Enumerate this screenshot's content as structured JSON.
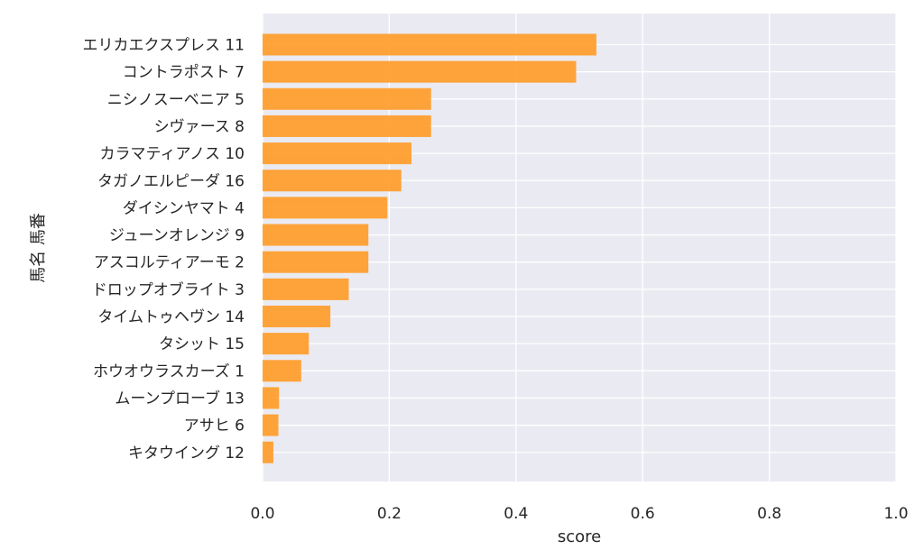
{
  "chart_data": {
    "type": "bar",
    "orientation": "horizontal",
    "xlabel": "score",
    "ylabel": "馬名 馬番",
    "xlim": [
      0.0,
      1.0
    ],
    "xticks": [
      "0.0",
      "0.2",
      "0.4",
      "0.6",
      "0.8",
      "1.0"
    ],
    "xtick_values": [
      0.0,
      0.2,
      0.4,
      0.6,
      0.8,
      1.0
    ],
    "grid": true,
    "bar_color": "#ff9f2e",
    "background_color": "#eaeaf2",
    "categories": [
      "エリカエクスプレス 11",
      "コントラポスト 7",
      "ニシノスーベニア 5",
      "シヴァース 8",
      "カラマティアノス 10",
      "タガノエルピーダ 16",
      "ダイシンヤマト 4",
      "ジューンオレンジ 9",
      "アスコルティアーモ 2",
      "ドロップオブライト 3",
      "タイムトゥヘヴン 14",
      "タシット 15",
      "ホウオウラスカーズ 1",
      "ムーンプローブ 13",
      "アサヒ 6",
      "キタウイング 12"
    ],
    "values": [
      0.527,
      0.495,
      0.266,
      0.266,
      0.235,
      0.219,
      0.197,
      0.167,
      0.167,
      0.136,
      0.107,
      0.073,
      0.061,
      0.026,
      0.025,
      0.017
    ]
  }
}
